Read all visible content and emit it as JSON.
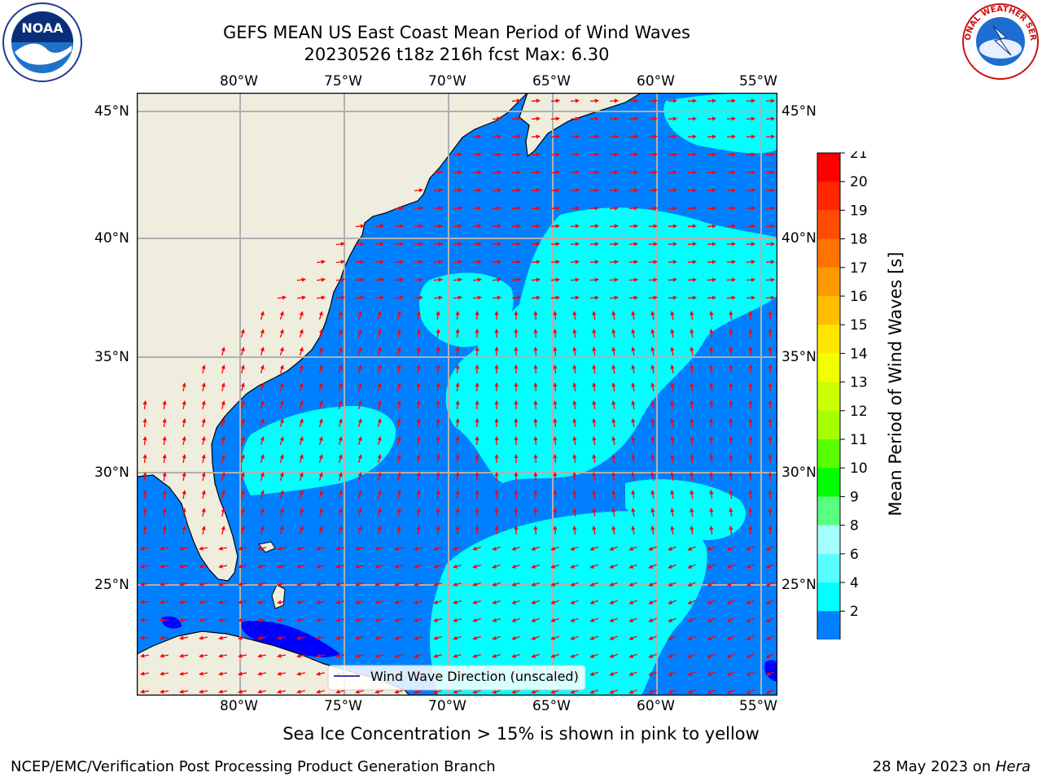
{
  "header": {
    "title_line1": "GEFS MEAN US East Coast Mean Period of Wind Waves",
    "title_line2": "20230526 t18z 216h fcst   Max: 6.30"
  },
  "logos": {
    "left": {
      "name": "noaa-logo",
      "text": "NOAA"
    },
    "right": {
      "name": "nws-logo",
      "text": "NATIONAL WEATHER SERVICE"
    }
  },
  "map": {
    "lon_labels": [
      "80°W",
      "75°W",
      "70°W",
      "65°W",
      "60°W",
      "55°W"
    ],
    "lat_labels": [
      "45°N",
      "40°N",
      "35°N",
      "30°N",
      "25°N"
    ],
    "legend_label": "Wind Wave Direction (unscaled)",
    "colors": {
      "land": "#efedde",
      "water_2_4": "#0080ff",
      "water_4_6": "#00ffff",
      "low": "#0000ff",
      "arrow": "#ff0000",
      "grid": "#b0b0b0"
    }
  },
  "colorbar": {
    "label": "Mean Period of Wind Waves [s]",
    "ticks": [
      "21",
      "20",
      "19",
      "18",
      "17",
      "16",
      "15",
      "14",
      "13",
      "12",
      "11",
      "10",
      "9",
      "8",
      "6",
      "4",
      "2"
    ],
    "colors": [
      "#ff0000",
      "#ff2600",
      "#ff4c00",
      "#ff7300",
      "#ff9900",
      "#ffbf00",
      "#ffe600",
      "#f2ff00",
      "#ccff00",
      "#a6ff00",
      "#59ff00",
      "#00ff00",
      "#59ff80",
      "#a6ffff",
      "#59ffff",
      "#00ffff",
      "#0080ff"
    ],
    "extend_color": "#0000ff"
  },
  "footer": {
    "note": "Sea Ice Concentration > 15% is shown in pink to yellow",
    "left": "NCEP/EMC/Verification Post Processing Product Generation Branch",
    "right_date": "28 May 2023 on ",
    "right_host": "Hera"
  }
}
